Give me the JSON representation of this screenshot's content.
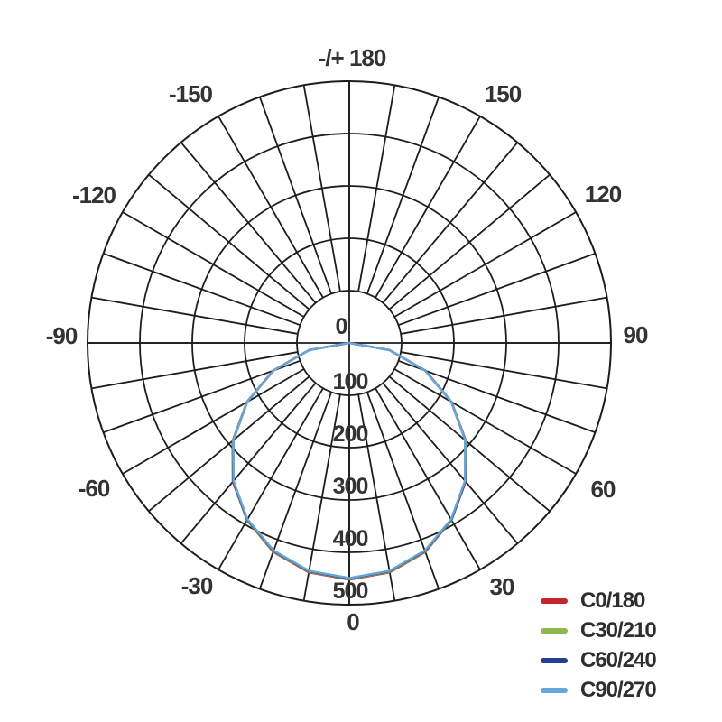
{
  "chart_data": {
    "type": "polar",
    "subtype": "photometric-luminous-intensity-distribution",
    "units": "cd",
    "background": "#ffffff",
    "grid": {
      "line_color": "#1d1d1d",
      "text_color": "#333333",
      "spoke_step_deg": 10,
      "angle_label_step_deg": 30
    },
    "angle_axis": {
      "labels": [
        {
          "text": "-/+ 180",
          "angle": 180
        },
        {
          "text": "150",
          "angle": 150
        },
        {
          "text": "120",
          "angle": 120
        },
        {
          "text": "90",
          "angle": 90
        },
        {
          "text": "60",
          "angle": 60
        },
        {
          "text": "30",
          "angle": 30
        },
        {
          "text": "0",
          "angle": 0
        },
        {
          "text": "-30",
          "angle": -30
        },
        {
          "text": "-60",
          "angle": -60
        },
        {
          "text": "-90",
          "angle": -90
        },
        {
          "text": "-120",
          "angle": -120
        },
        {
          "text": "-150",
          "angle": -150
        }
      ]
    },
    "radial_axis": {
      "tick_labels": [
        "0",
        "100",
        "200",
        "300",
        "400",
        "500"
      ],
      "tick_values": [
        0,
        100,
        200,
        300,
        400,
        500
      ],
      "max": 500,
      "direction": "downward-from-center"
    },
    "angles_deg": [
      -90,
      -80,
      -70,
      -60,
      -50,
      -40,
      -30,
      -20,
      -10,
      0,
      10,
      20,
      30,
      40,
      50,
      60,
      70,
      80,
      90
    ],
    "series": [
      {
        "name": "C0/180",
        "color": "#c1272d",
        "peak_cd": 452,
        "values": [
          0,
          78,
          155,
          226,
          291,
          346,
          391,
          425,
          445,
          452,
          445,
          425,
          391,
          346,
          291,
          226,
          155,
          78,
          0
        ]
      },
      {
        "name": "C30/210",
        "color": "#8cb751",
        "peak_cd": 451,
        "values": [
          0,
          78,
          154,
          226,
          290,
          345,
          391,
          424,
          444,
          451,
          444,
          424,
          391,
          345,
          290,
          226,
          154,
          78,
          0
        ]
      },
      {
        "name": "C60/240",
        "color": "#233f8f",
        "peak_cd": 450,
        "values": [
          0,
          78,
          154,
          225,
          289,
          345,
          390,
          423,
          443,
          450,
          443,
          423,
          390,
          345,
          289,
          225,
          154,
          78,
          0
        ]
      },
      {
        "name": "C90/270",
        "color": "#68a6d8",
        "peak_cd": 449,
        "values": [
          0,
          78,
          154,
          225,
          289,
          344,
          389,
          422,
          442,
          449,
          442,
          422,
          389,
          344,
          289,
          225,
          154,
          78,
          0
        ]
      }
    ],
    "legend": {
      "position": "bottom-right",
      "items": [
        {
          "label": "C0/180",
          "color": "#c1272d"
        },
        {
          "label": "C30/210",
          "color": "#8cb751"
        },
        {
          "label": "C60/240",
          "color": "#233f8f"
        },
        {
          "label": "C90/270",
          "color": "#68a6d8"
        }
      ]
    }
  }
}
